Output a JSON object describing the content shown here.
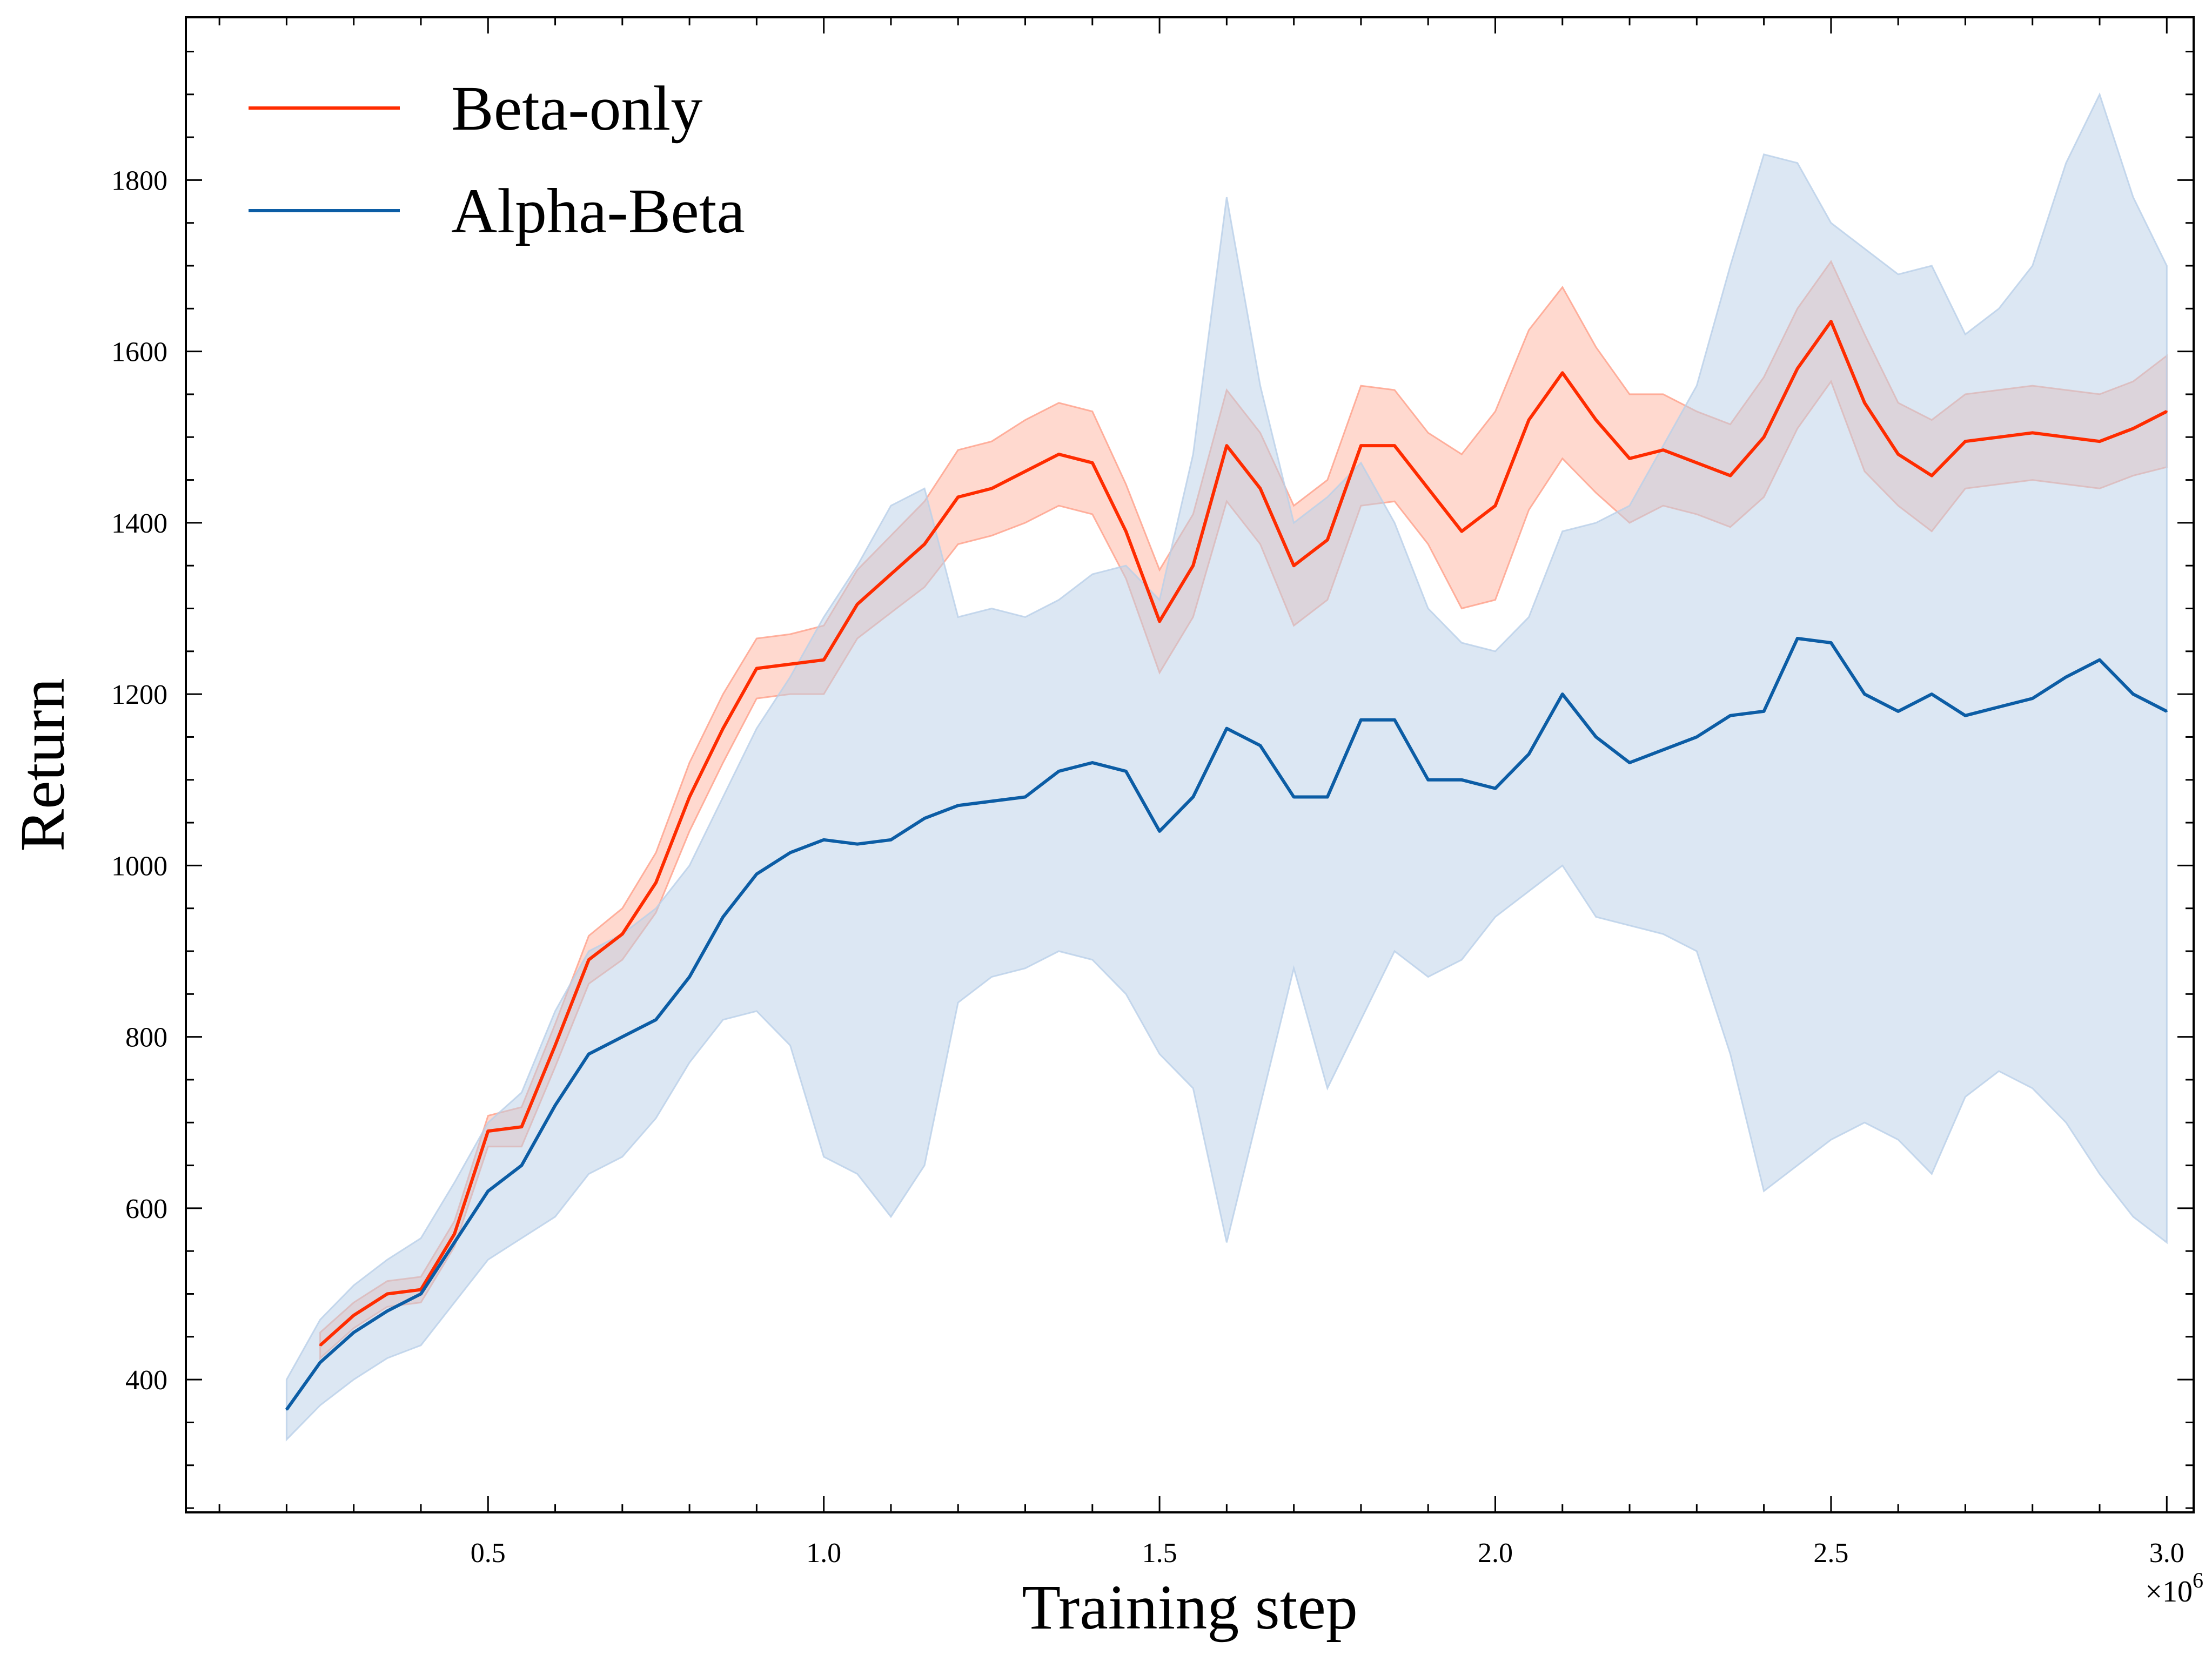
{
  "chart_data": {
    "type": "line",
    "title": "",
    "xlabel": "Training step",
    "ylabel": "Return",
    "x_scale_label": "×10",
    "x_scale_exponent": "6",
    "xlim": [
      0.05,
      3.04
    ],
    "ylim": [
      245,
      1990
    ],
    "xticks": [
      0.5,
      1.0,
      1.5,
      2.0,
      2.5,
      3.0
    ],
    "xtick_labels": [
      "0.5",
      "1.0",
      "1.5",
      "2.0",
      "2.5",
      "3.0"
    ],
    "yticks": [
      400,
      600,
      800,
      1000,
      1200,
      1400,
      1600,
      1800
    ],
    "ytick_labels": [
      "400",
      "600",
      "800",
      "1000",
      "1200",
      "1400",
      "1600",
      "1800"
    ],
    "legend_position": "top-left",
    "grid": false,
    "series": [
      {
        "name": "Beta-only",
        "color": "#ff2c00",
        "band_color": "#ff9f88",
        "x": [
          0.25,
          0.3,
          0.35,
          0.4,
          0.45,
          0.5,
          0.55,
          0.6,
          0.65,
          0.7,
          0.75,
          0.8,
          0.85,
          0.9,
          0.95,
          1.0,
          1.05,
          1.1,
          1.15,
          1.2,
          1.25,
          1.3,
          1.35,
          1.4,
          1.45,
          1.5,
          1.55,
          1.6,
          1.65,
          1.7,
          1.75,
          1.8,
          1.85,
          1.9,
          1.95,
          2.0,
          2.05,
          2.1,
          2.15,
          2.2,
          2.25,
          2.3,
          2.35,
          2.4,
          2.45,
          2.5,
          2.55,
          2.6,
          2.65,
          2.7,
          2.75,
          2.8,
          2.85,
          2.9,
          2.95,
          3.0
        ],
        "y": [
          440,
          475,
          500,
          505,
          570,
          690,
          695,
          790,
          890,
          920,
          980,
          1080,
          1160,
          1230,
          1235,
          1240,
          1305,
          1340,
          1375,
          1430,
          1440,
          1460,
          1480,
          1470,
          1390,
          1285,
          1350,
          1490,
          1440,
          1350,
          1380,
          1490,
          1490,
          1440,
          1390,
          1420,
          1520,
          1575,
          1520,
          1475,
          1485,
          1470,
          1455,
          1500,
          1580,
          1635,
          1540,
          1480,
          1455,
          1495,
          1500,
          1505,
          1500,
          1495,
          1510,
          1530
        ],
        "lower": [
          425,
          460,
          485,
          490,
          555,
          672,
          672,
          765,
          862,
          890,
          945,
          1040,
          1120,
          1195,
          1200,
          1200,
          1265,
          1295,
          1325,
          1375,
          1385,
          1400,
          1420,
          1410,
          1335,
          1225,
          1290,
          1425,
          1375,
          1280,
          1310,
          1420,
          1425,
          1375,
          1300,
          1310,
          1415,
          1475,
          1435,
          1400,
          1420,
          1410,
          1395,
          1430,
          1510,
          1565,
          1460,
          1420,
          1390,
          1440,
          1445,
          1450,
          1445,
          1440,
          1455,
          1465
        ],
        "upper": [
          455,
          490,
          515,
          520,
          585,
          708,
          718,
          815,
          918,
          950,
          1015,
          1120,
          1200,
          1265,
          1270,
          1280,
          1345,
          1385,
          1425,
          1485,
          1495,
          1520,
          1540,
          1530,
          1445,
          1345,
          1410,
          1555,
          1505,
          1420,
          1450,
          1560,
          1555,
          1505,
          1480,
          1530,
          1625,
          1675,
          1605,
          1550,
          1550,
          1530,
          1515,
          1570,
          1650,
          1705,
          1620,
          1540,
          1520,
          1550,
          1555,
          1560,
          1555,
          1550,
          1565,
          1595
        ]
      },
      {
        "name": "Alpha-Beta",
        "color": "#0c5da5",
        "band_color": "#b9cfe8",
        "x": [
          0.2,
          0.25,
          0.3,
          0.35,
          0.4,
          0.45,
          0.5,
          0.55,
          0.6,
          0.65,
          0.7,
          0.75,
          0.8,
          0.85,
          0.9,
          0.95,
          1.0,
          1.05,
          1.1,
          1.15,
          1.2,
          1.25,
          1.3,
          1.35,
          1.4,
          1.45,
          1.5,
          1.55,
          1.6,
          1.65,
          1.7,
          1.75,
          1.8,
          1.85,
          1.9,
          1.95,
          2.0,
          2.05,
          2.1,
          2.15,
          2.2,
          2.25,
          2.3,
          2.35,
          2.4,
          2.45,
          2.5,
          2.55,
          2.6,
          2.65,
          2.7,
          2.75,
          2.8,
          2.85,
          2.9,
          2.95,
          3.0
        ],
        "y": [
          365,
          420,
          455,
          480,
          500,
          560,
          620,
          650,
          720,
          780,
          800,
          820,
          870,
          940,
          990,
          1015,
          1030,
          1025,
          1030,
          1055,
          1070,
          1075,
          1080,
          1110,
          1120,
          1110,
          1040,
          1080,
          1160,
          1140,
          1080,
          1080,
          1170,
          1170,
          1100,
          1100,
          1090,
          1130,
          1200,
          1150,
          1120,
          1135,
          1150,
          1175,
          1180,
          1265,
          1260,
          1200,
          1180,
          1200,
          1175,
          1185,
          1195,
          1220,
          1240,
          1200,
          1180
        ],
        "lower": [
          330,
          370,
          400,
          425,
          440,
          490,
          540,
          565,
          590,
          640,
          660,
          705,
          770,
          820,
          830,
          790,
          660,
          640,
          590,
          650,
          840,
          870,
          880,
          900,
          890,
          850,
          780,
          740,
          560,
          720,
          880,
          740,
          820,
          900,
          870,
          890,
          940,
          970,
          1000,
          940,
          930,
          920,
          900,
          780,
          620,
          650,
          680,
          700,
          680,
          640,
          730,
          760,
          740,
          700,
          640,
          590,
          560
        ],
        "upper": [
          400,
          470,
          510,
          540,
          565,
          630,
          700,
          735,
          830,
          900,
          920,
          950,
          1000,
          1080,
          1160,
          1220,
          1290,
          1350,
          1420,
          1440,
          1290,
          1300,
          1290,
          1310,
          1340,
          1350,
          1310,
          1480,
          1780,
          1560,
          1400,
          1430,
          1470,
          1400,
          1300,
          1260,
          1250,
          1290,
          1390,
          1400,
          1420,
          1490,
          1560,
          1700,
          1830,
          1820,
          1750,
          1720,
          1690,
          1700,
          1620,
          1650,
          1700,
          1820,
          1900,
          1780,
          1700
        ]
      }
    ]
  }
}
